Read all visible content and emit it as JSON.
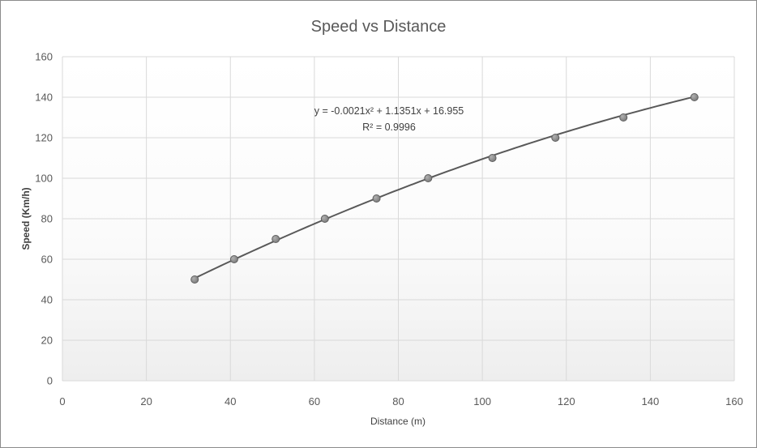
{
  "chart_data": {
    "type": "scatter",
    "title": "Speed vs Distance",
    "xlabel": "Distance (m)",
    "ylabel": "Speed (Km/h)",
    "xlim": [
      0,
      160
    ],
    "ylim": [
      0,
      160
    ],
    "x_ticks": [
      "0",
      "20",
      "40",
      "60",
      "80",
      "100",
      "120",
      "140",
      "160"
    ],
    "y_ticks": [
      "0",
      "20",
      "40",
      "60",
      "80",
      "100",
      "120",
      "140",
      "160"
    ],
    "grid": true,
    "series": [
      {
        "x": [
          31.5,
          40.9,
          50.8,
          62.5,
          74.8,
          87.1,
          102.4,
          117.4,
          133.6,
          150.5
        ],
        "y": [
          50,
          60,
          70,
          80,
          90,
          100,
          110,
          120,
          130,
          140
        ],
        "color": "#808080"
      }
    ],
    "trendline": {
      "type": "polynomial",
      "coefficients": [
        -0.0021,
        1.1351,
        16.955
      ],
      "x_range": [
        31.5,
        150.5
      ],
      "equation_label": "y = -0.0021x² + 1.1351x + 16.955",
      "r2_label": "R² = 0.9996",
      "color": "#595959"
    }
  }
}
